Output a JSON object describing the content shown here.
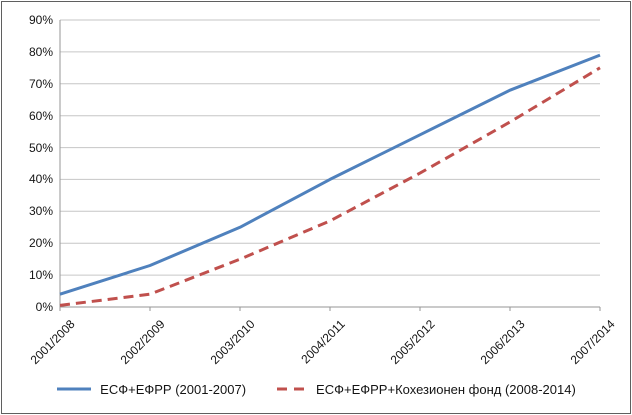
{
  "chart_data": {
    "type": "line",
    "categories": [
      "2001/2008",
      "2002/2009",
      "2003/2010",
      "2004/2011",
      "2005/2012",
      "2006/2013",
      "2007/2014"
    ],
    "series": [
      {
        "name": "ЕСФ+ЕФРР (2001-2007)",
        "color": "#4F81BD",
        "style": "solid",
        "values": [
          4,
          13,
          25,
          40,
          54,
          68,
          79
        ]
      },
      {
        "name": "ЕСФ+ЕФРР+Кохезионен фонд (2008-2014)",
        "color": "#C0504D",
        "style": "dashed",
        "values": [
          0.5,
          4,
          15,
          27,
          42,
          58,
          75
        ]
      }
    ],
    "y_axis": {
      "min": 0,
      "max": 90,
      "step": 10,
      "tick_labels": [
        "0%",
        "10%",
        "20%",
        "30%",
        "40%",
        "50%",
        "60%",
        "70%",
        "80%",
        "90%"
      ],
      "format": "percent"
    },
    "title": "",
    "xlabel": "",
    "ylabel": "",
    "grid": true,
    "legend_position": "bottom",
    "colors": {
      "gridline": "#C6C6C6",
      "axis": "#969696",
      "border": "#5f5f5f",
      "background": "#ffffff"
    }
  }
}
